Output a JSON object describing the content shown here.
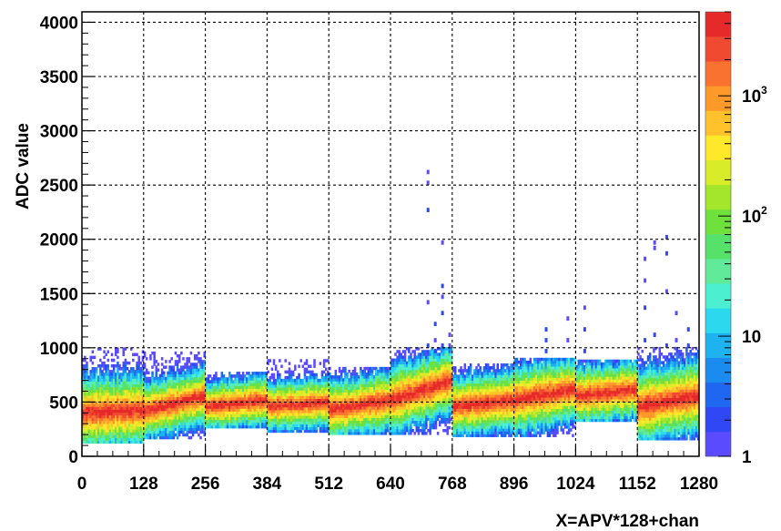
{
  "chart_data": {
    "type": "heatmap",
    "title": "",
    "xlabel": "X=APV*128+chan",
    "ylabel": "ADC value",
    "xlim": [
      0,
      1280
    ],
    "ylim": [
      0,
      4096
    ],
    "grid": true,
    "x_ticks": [
      "0",
      "128",
      "256",
      "384",
      "512",
      "640",
      "768",
      "896",
      "1024",
      "1152",
      "1280"
    ],
    "y_ticks": [
      "0",
      "500",
      "1000",
      "1500",
      "2000",
      "2500",
      "3000",
      "3500",
      "4000"
    ],
    "colorbar": {
      "scale": "log",
      "range": [
        1,
        5000
      ],
      "labels": [
        {
          "base": "1",
          "exp": "",
          "value": 1
        },
        {
          "base": "10",
          "exp": "",
          "value": 10
        },
        {
          "base": "10",
          "exp": "2",
          "value": 100
        },
        {
          "base": "10",
          "exp": "3",
          "value": 1000
        }
      ]
    },
    "segments": [
      {
        "x_range": [
          0,
          128
        ],
        "center_start": 400,
        "center_end": 430,
        "core_half_width": 90,
        "envelope_low": 120,
        "envelope_high": 1000
      },
      {
        "x_range": [
          128,
          256
        ],
        "center_start": 420,
        "center_end": 560,
        "core_half_width": 70,
        "envelope_low": 160,
        "envelope_high": 950
      },
      {
        "x_range": [
          256,
          384
        ],
        "center_start": 460,
        "center_end": 520,
        "core_half_width": 60,
        "envelope_low": 260,
        "envelope_high": 770
      },
      {
        "x_range": [
          384,
          512
        ],
        "center_start": 460,
        "center_end": 500,
        "core_half_width": 60,
        "envelope_low": 220,
        "envelope_high": 880
      },
      {
        "x_range": [
          512,
          640
        ],
        "center_start": 430,
        "center_end": 520,
        "core_half_width": 70,
        "envelope_low": 200,
        "envelope_high": 800
      },
      {
        "x_range": [
          640,
          768
        ],
        "center_start": 520,
        "center_end": 700,
        "core_half_width": 80,
        "envelope_low": 200,
        "envelope_high": 1000
      },
      {
        "x_range": [
          768,
          896
        ],
        "center_start": 460,
        "center_end": 520,
        "core_half_width": 70,
        "envelope_low": 180,
        "envelope_high": 850
      },
      {
        "x_range": [
          896,
          1024
        ],
        "center_start": 520,
        "center_end": 620,
        "core_half_width": 80,
        "envelope_low": 180,
        "envelope_high": 900
      },
      {
        "x_range": [
          1024,
          1152
        ],
        "center_start": 560,
        "center_end": 620,
        "core_half_width": 70,
        "envelope_low": 320,
        "envelope_high": 880
      },
      {
        "x_range": [
          1152,
          1280
        ],
        "center_start": 460,
        "center_end": 560,
        "core_half_width": 90,
        "envelope_low": 150,
        "envelope_high": 1000
      }
    ],
    "outliers": [
      {
        "x": 715,
        "y": [
          1000,
          1400,
          2250,
          2500,
          2600
        ]
      },
      {
        "x": 730,
        "y": [
          950,
          1050,
          1200
        ]
      },
      {
        "x": 745,
        "y": [
          1000,
          1300,
          1450,
          1550,
          1950
        ]
      },
      {
        "x": 760,
        "y": [
          1000,
          1100
        ]
      },
      {
        "x": 960,
        "y": [
          950,
          1050,
          1150
        ]
      },
      {
        "x": 1005,
        "y": [
          1050,
          1250
        ]
      },
      {
        "x": 1040,
        "y": [
          950,
          1150,
          1350
        ]
      },
      {
        "x": 1165,
        "y": [
          1050,
          1350,
          1600,
          1800
        ]
      },
      {
        "x": 1185,
        "y": [
          1100,
          1900,
          1950
        ]
      },
      {
        "x": 1210,
        "y": [
          1000,
          1500,
          1850,
          2000
        ]
      },
      {
        "x": 1230,
        "y": [
          1050,
          1300
        ]
      },
      {
        "x": 1255,
        "y": [
          1000,
          1150
        ]
      }
    ]
  }
}
